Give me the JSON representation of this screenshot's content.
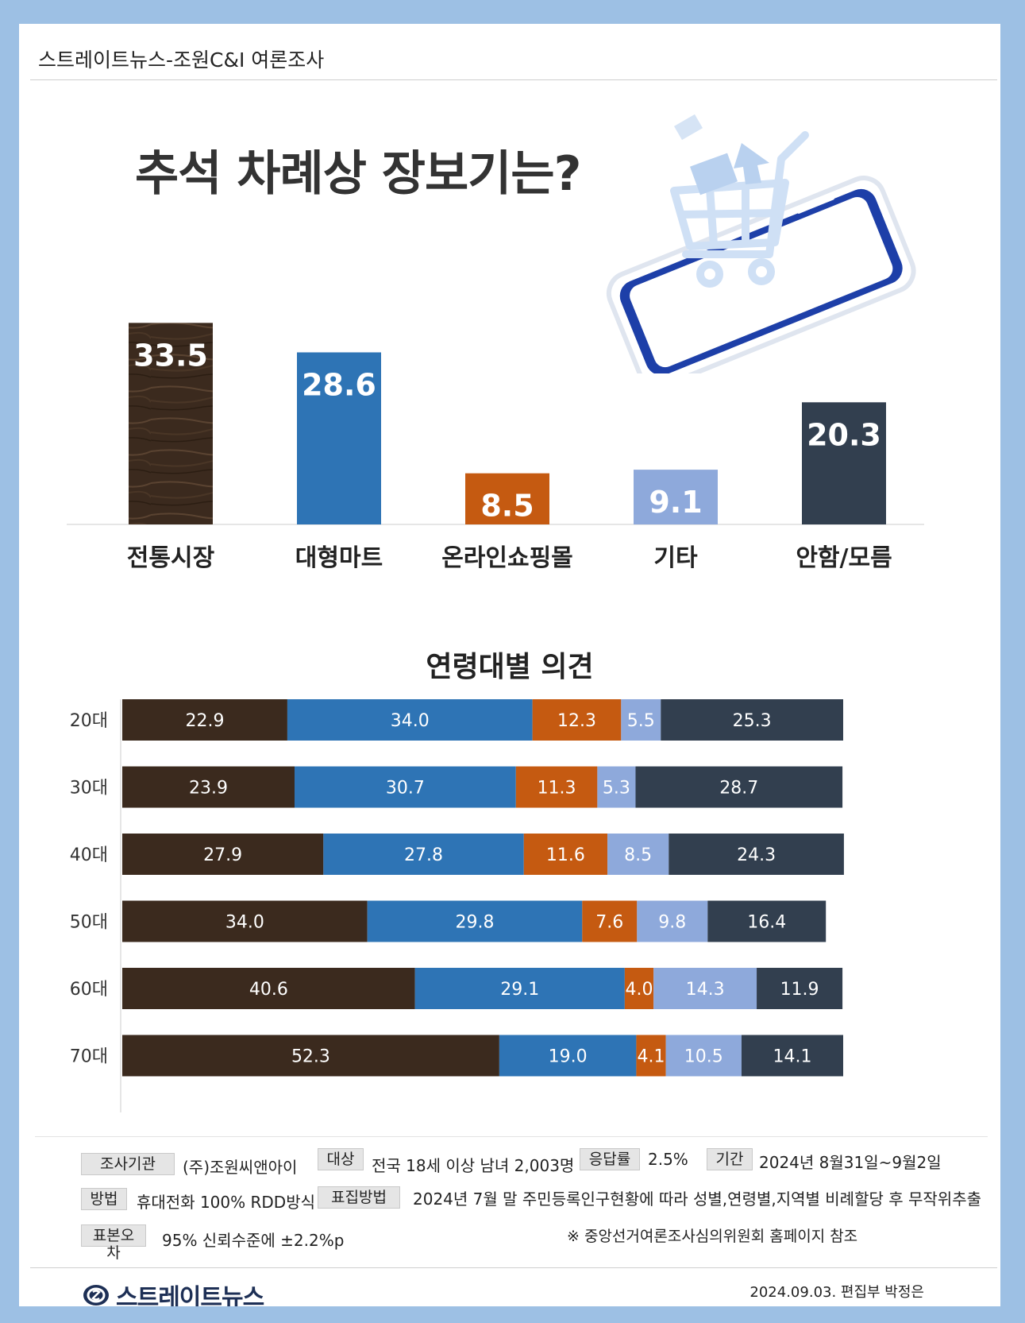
{
  "header": {
    "title": "스트레이트뉴스-조원C&I 여론조사"
  },
  "main_title": "추석 차례상 장보기는?",
  "sub_title": "연령대별 의견",
  "colors": {
    "traditional": "#3b2a1e",
    "mart": "#2e74b5",
    "online": "#c55a11",
    "other": "#8ea9db",
    "unknown": "#323f4f"
  },
  "chart_data": [
    {
      "type": "bar",
      "categories": [
        "전통시장",
        "대형마트",
        "온라인쇼핑몰",
        "기타",
        "안함/모름"
      ],
      "values": [
        33.5,
        28.6,
        8.5,
        9.1,
        20.3
      ],
      "title": "추석 차례상 장보기는?",
      "ylim": [
        0,
        35
      ],
      "grid": false
    },
    {
      "type": "bar",
      "orientation": "horizontal-stacked",
      "title": "연령대별 의견",
      "categories": [
        "20대",
        "30대",
        "40대",
        "50대",
        "60대",
        "70대"
      ],
      "series": [
        {
          "name": "전통시장",
          "values": [
            22.9,
            23.9,
            27.9,
            34.0,
            40.6,
            52.3
          ]
        },
        {
          "name": "대형마트",
          "values": [
            34.0,
            30.7,
            27.8,
            29.8,
            29.1,
            19.0
          ]
        },
        {
          "name": "온라인쇼핑몰",
          "values": [
            12.3,
            11.3,
            11.6,
            7.6,
            4.0,
            4.1
          ]
        },
        {
          "name": "기타",
          "values": [
            5.5,
            5.3,
            8.5,
            9.8,
            14.3,
            10.5
          ]
        },
        {
          "name": "안함/모름",
          "values": [
            25.3,
            28.7,
            24.3,
            16.4,
            11.9,
            14.1
          ]
        }
      ],
      "xlim": [
        0,
        100
      ]
    }
  ],
  "info": {
    "org_label": "조사기관",
    "org_value": "(주)조원씨앤아이",
    "target_label": "대상",
    "target_value": "전국 18세 이상 남녀 2,003명",
    "rate_label": "응답률",
    "rate_value": "2.5%",
    "period_label": "기간",
    "period_value": "2024년 8월31일~9월2일",
    "method_label": "방법",
    "method_value": "휴대전화 100% RDD방식",
    "sampling_label": "표집방법",
    "sampling_value": "2024년 7월 말 주민등록인구현황에 따라 성별,연령별,지역별 비례할당 후 무작위추출",
    "error_label": "표본오차",
    "error_value": "95% 신뢰수준에 ±2.2%p",
    "note": "※ 중앙선거여론조사심의위원회 홈페이지 참조"
  },
  "footer": {
    "logo_text": "스트레이트뉴스",
    "credit": "2024.09.03. 편집부 박정은"
  }
}
